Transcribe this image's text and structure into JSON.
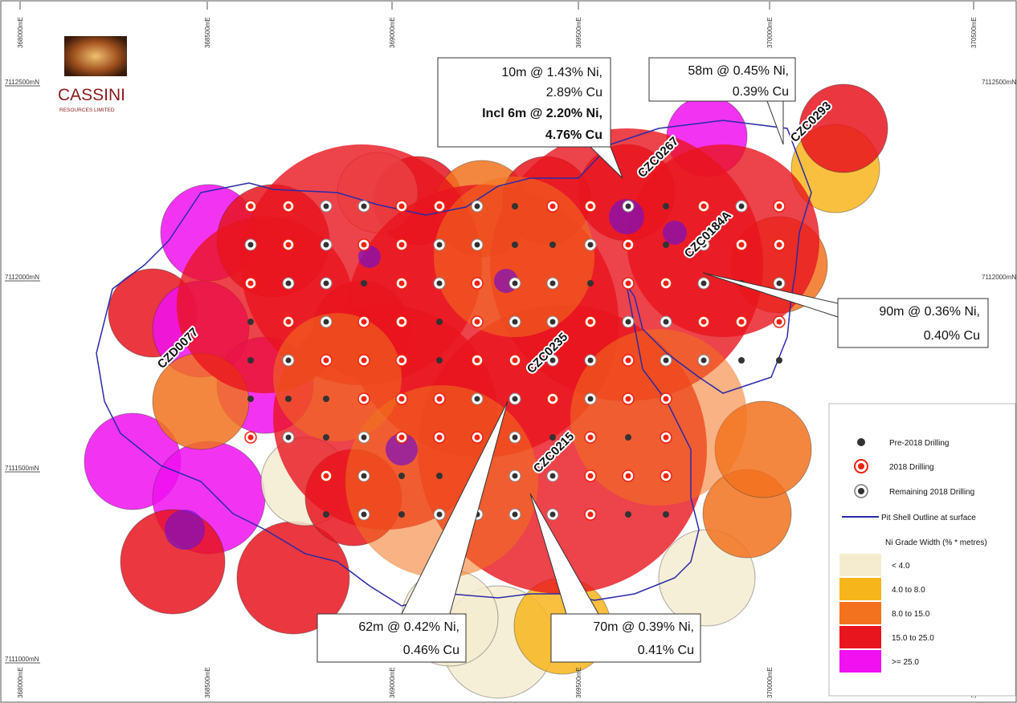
{
  "grid": {
    "eastings": [
      "368000mE",
      "368500mE",
      "369000mE",
      "369500mE",
      "370000mE",
      "370500mE"
    ],
    "northings": [
      "7112500mN",
      "7112000mN",
      "7111500mN",
      "7111000mN"
    ]
  },
  "logo": {
    "name": "CASSINI",
    "subtitle": "RESOURCES LIMITED"
  },
  "callouts": [
    {
      "lines": [
        "10m @ 1.43% Ni,",
        "2.89% Cu",
        "Incl 6m @ 2.20% Ni,",
        "4.76% Cu"
      ]
    },
    {
      "lines": [
        "58m @ 0.45% Ni,",
        "0.39% Cu"
      ]
    },
    {
      "lines": [
        "90m @ 0.36% Ni,",
        "0.40% Cu"
      ]
    },
    {
      "lines": [
        "62m @ 0.42% Ni,",
        "0.46% Cu"
      ]
    },
    {
      "lines": [
        "70m @ 0.39% Ni,",
        "0.41% Cu"
      ]
    }
  ],
  "holes": [
    "CZC0267",
    "CZC0293",
    "CZC0184A",
    "CZD0077",
    "CZC0235",
    "CZC0215"
  ],
  "legend": {
    "items": [
      "Pre-2018 Drilling",
      "2018 Drilling",
      "Remaining 2018 Drilling",
      "Pit Shell Outline at surface"
    ],
    "grade_title": "Ni Grade Width (% * metres)",
    "grades": [
      {
        "label": "< 4.0",
        "color": "#f5ecd0"
      },
      {
        "label": "4.0 to 8.0",
        "color": "#f7b51c"
      },
      {
        "label": "8.0 to 15.0",
        "color": "#f2721e"
      },
      {
        "label": "15.0 to 25.0",
        "color": "#e8141e"
      },
      {
        "label": ">= 25.0",
        "color": "#f010f0"
      }
    ]
  }
}
